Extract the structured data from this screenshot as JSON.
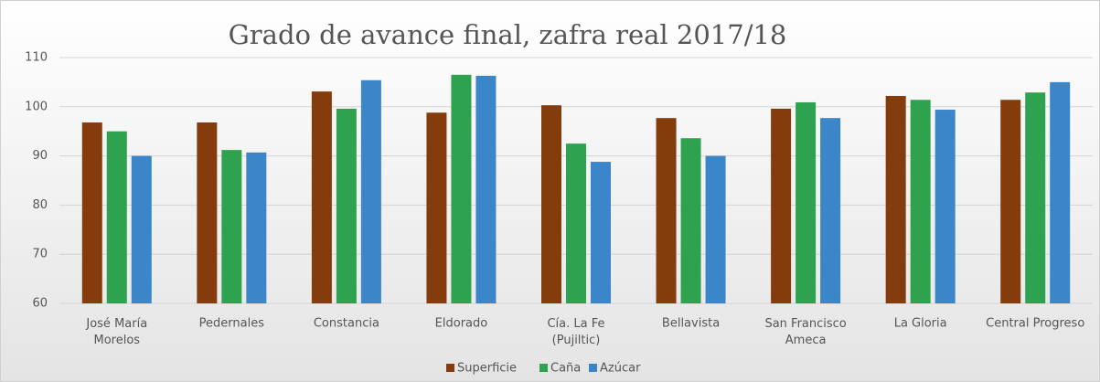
{
  "chart_data": {
    "type": "bar",
    "title": "Grado de avance final, zafra real 2017/18",
    "categories": [
      "José María\nMorelos",
      "Pedernales",
      "Constancia",
      "Eldorado",
      "Cía. La Fe\n(Pujiltic)",
      "Bellavista",
      "San Francisco\nAmeca",
      "La Gloria",
      "Central Progreso"
    ],
    "series": [
      {
        "name": "Superficie",
        "color": "#843c0c",
        "values": [
          96.8,
          96.8,
          103.1,
          98.8,
          100.3,
          97.7,
          99.6,
          102.2,
          101.4
        ]
      },
      {
        "name": "Caña",
        "color": "#2fa24f",
        "values": [
          95,
          91.2,
          99.6,
          106.5,
          92.5,
          93.6,
          100.9,
          101.4,
          102.9
        ]
      },
      {
        "name": "Azúcar",
        "color": "#3a86c8",
        "values": [
          90,
          90.7,
          105.4,
          106.3,
          88.8,
          90,
          97.7,
          99.4,
          105
        ]
      }
    ],
    "ylim": [
      60,
      110
    ],
    "yticks": [
      60,
      70,
      80,
      90,
      100,
      110
    ],
    "grid": true,
    "legend": "bottom"
  }
}
